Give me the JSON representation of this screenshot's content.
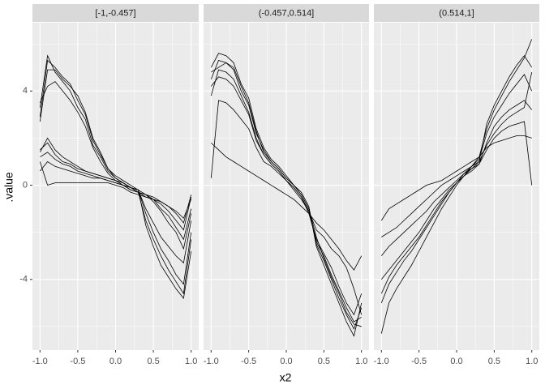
{
  "x_label": "x2",
  "y_label": ".value",
  "chart_data": [
    {
      "type": "line",
      "title": "[-1,-0.457]",
      "color": "#000000",
      "xlim": [
        -1.1,
        1.1
      ],
      "xticks": [
        {
          "value": -1,
          "label": "-1.0"
        },
        -0.5,
        {
          "value": 0,
          "label": "0.0"
        },
        0.5,
        {
          "value": 1,
          "label": "1.0"
        }
      ],
      "xminor": [
        -0.75,
        -0.25,
        0.25,
        0.75
      ],
      "ylim": [
        -7,
        6.9
      ],
      "yticks": [
        -4,
        0,
        4
      ],
      "yminor": [
        -6,
        -2,
        2,
        6
      ],
      "grid": true,
      "x": [
        -1,
        -0.9,
        -0.8,
        -0.7,
        -0.6,
        -0.5,
        -0.4,
        -0.3,
        -0.2,
        -0.1,
        0,
        0.1,
        0.2,
        0.3,
        0.4,
        0.5,
        0.6,
        0.7,
        0.8,
        0.9,
        1
      ],
      "series": [
        {
          "values": [
            2.9,
            5.3,
            5.0,
            4.6,
            4.3,
            3.6,
            3.0,
            1.9,
            1.3,
            0.7,
            0.3,
            0.1,
            -0.1,
            -0.3,
            -1.5,
            -2.3,
            -3.0,
            -3.6,
            -4.1,
            -4.6,
            -2.3
          ]
        },
        {
          "values": [
            3.3,
            5.5,
            4.8,
            4.4,
            4.0,
            3.3,
            2.8,
            1.7,
            1.2,
            0.6,
            0.3,
            0.1,
            -0.1,
            -0.2,
            -1.2,
            -2.0,
            -2.7,
            -3.2,
            -3.8,
            -4.2,
            -2.0
          ]
        },
        {
          "values": [
            2.7,
            4.9,
            4.9,
            4.5,
            4.2,
            3.8,
            3.1,
            2.0,
            1.4,
            0.7,
            0.4,
            0.2,
            0.0,
            -0.2,
            -1.7,
            -2.6,
            -3.4,
            -3.9,
            -4.4,
            -4.8,
            -2.8
          ]
        },
        {
          "values": [
            3.5,
            4.2,
            4.4,
            4.0,
            3.6,
            3.1,
            2.5,
            1.6,
            1.0,
            0.5,
            0.2,
            0.0,
            -0.1,
            -0.2,
            -1.0,
            -1.6,
            -2.2,
            -2.6,
            -3.0,
            -3.3,
            -1.5
          ]
        },
        {
          "values": [
            1.2,
            1.4,
            1.1,
            0.9,
            0.8,
            0.6,
            0.5,
            0.4,
            0.3,
            0.2,
            0.1,
            0.0,
            -0.2,
            -0.3,
            -0.5,
            -0.6,
            -0.8,
            -1.1,
            -1.5,
            -1.9,
            -0.5
          ]
        },
        {
          "values": [
            1.5,
            1.8,
            1.3,
            1.0,
            0.9,
            0.7,
            0.6,
            0.5,
            0.4,
            0.3,
            0.2,
            0.0,
            -0.1,
            -0.3,
            -0.4,
            -0.6,
            -1.0,
            -1.3,
            -1.8,
            -2.3,
            -1.0
          ]
        },
        {
          "values": [
            0.6,
            1.0,
            0.8,
            0.7,
            0.6,
            0.5,
            0.4,
            0.3,
            0.3,
            0.2,
            0.1,
            0.0,
            -0.2,
            -0.3,
            -0.4,
            -0.5,
            -0.7,
            -0.9,
            -1.2,
            -1.6,
            -0.4
          ]
        },
        {
          "values": [
            1.0,
            0.0,
            0.1,
            0.1,
            0.1,
            0.1,
            0.1,
            0.1,
            0.1,
            0.1,
            0.0,
            -0.1,
            -0.3,
            -0.4,
            -0.5,
            -0.6,
            -0.7,
            -0.9,
            -1.1,
            -1.4,
            -0.6
          ]
        },
        {
          "values": [
            1.4,
            2.0,
            1.5,
            1.2,
            1.0,
            0.8,
            0.6,
            0.5,
            0.4,
            0.3,
            0.2,
            0.1,
            -0.1,
            -0.2,
            -0.4,
            -0.7,
            -1.1,
            -1.6,
            -2.0,
            -2.7,
            -1.2
          ]
        }
      ]
    },
    {
      "type": "line",
      "title": "(-0.457,0.514]",
      "color": "#000000",
      "xlim": [
        -1.1,
        1.1
      ],
      "xticks": [
        {
          "value": -1,
          "label": "-1.0"
        },
        -0.5,
        {
          "value": 0,
          "label": "0.0"
        },
        0.5,
        {
          "value": 1,
          "label": "1.0"
        }
      ],
      "xminor": [
        -0.75,
        -0.25,
        0.25,
        0.75
      ],
      "x": [
        -1,
        -0.9,
        -0.8,
        -0.7,
        -0.6,
        -0.5,
        -0.4,
        -0.3,
        -0.2,
        -0.1,
        0,
        0.1,
        0.2,
        0.3,
        0.4,
        0.5,
        0.6,
        0.7,
        0.8,
        0.9,
        1
      ],
      "series": [
        {
          "values": [
            4.5,
            5.3,
            5.2,
            4.9,
            4.0,
            3.4,
            2.2,
            1.5,
            1.0,
            0.7,
            0.3,
            0.0,
            -0.4,
            -1.0,
            -2.5,
            -3.2,
            -4.0,
            -4.8,
            -5.5,
            -6.1,
            -5.2
          ]
        },
        {
          "values": [
            3.8,
            4.9,
            4.8,
            4.5,
            3.8,
            3.1,
            2.0,
            1.3,
            0.9,
            0.6,
            0.2,
            -0.1,
            -0.5,
            -1.1,
            -2.4,
            -3.0,
            -3.8,
            -4.5,
            -5.2,
            -5.8,
            -5.6
          ]
        },
        {
          "values": [
            5.0,
            5.6,
            5.5,
            5.2,
            4.3,
            3.7,
            2.4,
            1.6,
            1.1,
            0.8,
            0.4,
            0.0,
            -0.3,
            -0.9,
            -2.6,
            -3.4,
            -4.2,
            -5.0,
            -5.8,
            -6.4,
            -5.0
          ]
        },
        {
          "values": [
            4.2,
            4.6,
            4.5,
            4.2,
            3.6,
            3.0,
            1.9,
            1.3,
            0.9,
            0.6,
            0.2,
            -0.1,
            -0.5,
            -1.2,
            -2.3,
            -2.9,
            -3.5,
            -4.3,
            -5.0,
            -5.5,
            -4.6
          ]
        },
        {
          "values": [
            0.3,
            3.6,
            3.5,
            3.2,
            2.8,
            2.4,
            1.6,
            1.0,
            0.8,
            0.5,
            0.2,
            -0.2,
            -0.6,
            -1.1,
            -1.9,
            -2.2,
            -2.7,
            -3.0,
            -3.5,
            -4.4,
            -5.5
          ]
        },
        {
          "values": [
            1.8,
            1.5,
            1.2,
            1.0,
            0.8,
            0.6,
            0.4,
            0.2,
            0.0,
            -0.2,
            -0.4,
            -0.6,
            -0.9,
            -1.2,
            -1.6,
            -1.9,
            -2.3,
            -2.7,
            -3.2,
            -3.6,
            -3.0
          ]
        },
        {
          "values": [
            4.8,
            5.0,
            5.2,
            5.0,
            4.2,
            3.5,
            2.3,
            1.4,
            1.0,
            0.7,
            0.3,
            0.0,
            -0.4,
            -1.0,
            -2.2,
            -3.1,
            -3.9,
            -4.6,
            -5.4,
            -5.9,
            -6.0
          ]
        }
      ]
    },
    {
      "type": "line",
      "title": "(0.514,1]",
      "color": "#000000",
      "xlim": [
        -1.1,
        1.1
      ],
      "xticks": [
        {
          "value": -1,
          "label": "-1.0"
        },
        -0.5,
        {
          "value": 0,
          "label": "0.0"
        },
        0.5,
        {
          "value": 1,
          "label": "1.0"
        }
      ],
      "xminor": [
        -0.75,
        -0.25,
        0.25,
        0.75
      ],
      "x": [
        -1,
        -0.9,
        -0.8,
        -0.7,
        -0.6,
        -0.5,
        -0.4,
        -0.3,
        -0.2,
        -0.1,
        0,
        0.1,
        0.2,
        0.3,
        0.4,
        0.5,
        0.6,
        0.7,
        0.8,
        0.9,
        1
      ],
      "series": [
        {
          "values": [
            -4.0,
            -3.6,
            -3.2,
            -2.8,
            -2.4,
            -2.0,
            -1.5,
            -1.0,
            -0.6,
            -0.2,
            0.1,
            0.4,
            0.6,
            0.9,
            1.8,
            2.5,
            2.9,
            3.2,
            3.4,
            3.6,
            3.2
          ]
        },
        {
          "values": [
            -1.5,
            -1.0,
            -0.8,
            -0.6,
            -0.4,
            -0.2,
            0.0,
            0.1,
            0.2,
            0.4,
            0.6,
            0.8,
            1.0,
            1.2,
            1.6,
            1.8,
            1.9,
            2.0,
            2.1,
            2.1,
            2.0
          ]
        },
        {
          "values": [
            -6.3,
            -5.0,
            -4.4,
            -3.9,
            -3.4,
            -2.8,
            -2.2,
            -1.6,
            -1.0,
            -0.5,
            0.0,
            0.4,
            0.8,
            1.2,
            2.4,
            3.2,
            3.8,
            4.4,
            4.9,
            5.4,
            6.2
          ]
        },
        {
          "values": [
            -5.0,
            -4.2,
            -3.7,
            -3.2,
            -2.8,
            -2.3,
            -1.8,
            -1.3,
            -0.8,
            -0.3,
            0.1,
            0.5,
            0.8,
            1.1,
            2.2,
            2.9,
            3.4,
            3.9,
            4.3,
            4.7,
            4.0
          ]
        },
        {
          "values": [
            -3.0,
            -2.6,
            -2.3,
            -2.0,
            -1.7,
            -1.4,
            -1.1,
            -0.7,
            -0.4,
            -0.1,
            0.2,
            0.5,
            0.7,
            0.9,
            1.5,
            2.0,
            2.3,
            2.5,
            2.6,
            2.7,
            0.0
          ]
        },
        {
          "values": [
            -2.2,
            -2.0,
            -1.8,
            -1.5,
            -1.2,
            -0.9,
            -0.6,
            -0.3,
            0.0,
            0.2,
            0.4,
            0.6,
            0.8,
            1.0,
            1.7,
            2.2,
            2.6,
            2.9,
            3.1,
            3.3,
            4.8
          ]
        },
        {
          "values": [
            -4.6,
            -3.9,
            -3.4,
            -3.0,
            -2.6,
            -2.2,
            -1.7,
            -1.2,
            -0.7,
            -0.3,
            0.1,
            0.4,
            0.7,
            1.0,
            2.6,
            3.4,
            4.0,
            4.6,
            5.1,
            5.5,
            5.0
          ]
        }
      ]
    }
  ]
}
